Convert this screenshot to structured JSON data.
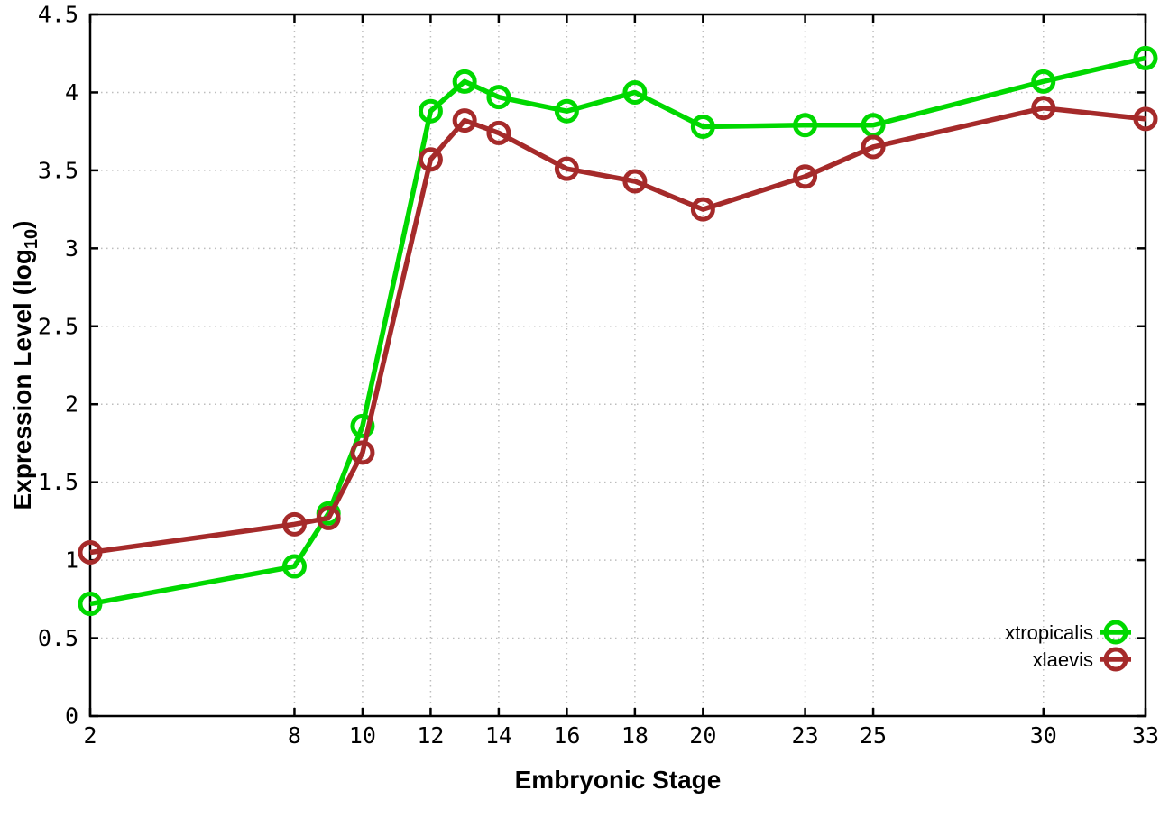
{
  "chart_data": {
    "type": "line",
    "title": "",
    "xlabel": "Embryonic Stage",
    "ylabel": "Expression Level (log10)",
    "ylabel_parts": {
      "pre": "Expression Level (log",
      "sub": "10",
      "post": ")"
    },
    "xlim": [
      2,
      33
    ],
    "ylim": [
      0,
      4.5
    ],
    "x_ticks": [
      2,
      8,
      10,
      12,
      14,
      16,
      18,
      20,
      23,
      25,
      30,
      33
    ],
    "x_tick_labels": [
      "2",
      "8",
      "10",
      "12",
      "14",
      "16",
      "18",
      "20",
      "23",
      "25",
      "30",
      "33"
    ],
    "y_ticks": [
      0,
      0.5,
      1,
      1.5,
      2,
      2.5,
      3,
      3.5,
      4,
      4.5
    ],
    "y_tick_labels": [
      "0",
      "0.5",
      "1",
      "1.5",
      "2",
      "2.5",
      "3",
      "3.5",
      "4",
      "4.5"
    ],
    "grid": true,
    "legend_position": "inside-bottom-right",
    "x": [
      2,
      8,
      9,
      10,
      12,
      13,
      14,
      16,
      18,
      20,
      23,
      25,
      30,
      33
    ],
    "series": [
      {
        "name": "xtropicalis",
        "color": "#00d800",
        "values": [
          0.72,
          0.96,
          1.3,
          1.86,
          3.88,
          4.07,
          3.97,
          3.88,
          4.0,
          3.78,
          3.79,
          3.79,
          4.07,
          4.22
        ]
      },
      {
        "name": "xlaevis",
        "color": "#a52a2a",
        "values": [
          1.05,
          1.23,
          1.27,
          1.69,
          3.57,
          3.82,
          3.74,
          3.51,
          3.43,
          3.25,
          3.46,
          3.65,
          3.9,
          3.83
        ]
      }
    ],
    "colors": {
      "grid": "#bdbdbd",
      "axis": "#000000",
      "background": "#ffffff"
    }
  }
}
